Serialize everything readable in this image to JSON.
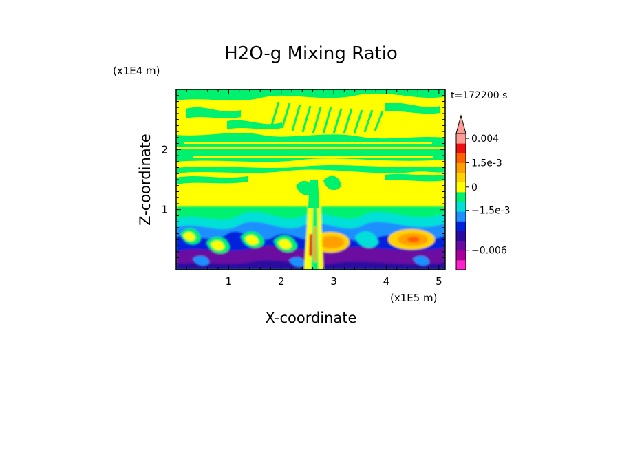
{
  "chart_data": {
    "type": "heatmap",
    "title": "H2O-g Mixing Ratio",
    "xlabel": "X-coordinate",
    "ylabel": "Z-coordinate",
    "x_multiplier": "(x1E5 m)",
    "y_multiplier": "(x1E4 m)",
    "time_label": "t=172200 s",
    "xlim": [
      0,
      5.12
    ],
    "ylim": [
      0,
      3.0
    ],
    "x_ticks": [
      {
        "value": 1,
        "label": "1"
      },
      {
        "value": 2,
        "label": "2"
      },
      {
        "value": 3,
        "label": "3"
      },
      {
        "value": 4,
        "label": "4"
      },
      {
        "value": 5,
        "label": "5"
      }
    ],
    "y_ticks": [
      {
        "value": 1,
        "label": "1"
      },
      {
        "value": 2,
        "label": "2"
      }
    ],
    "colorbar": {
      "colors": [
        "#ff22cc",
        "#aa0099",
        "#6a0aa0",
        "#2c0aa0",
        "#0020dd",
        "#1e90ff",
        "#00e0d8",
        "#00f070",
        "#ffff00",
        "#ffd200",
        "#ffa000",
        "#ff6000",
        "#ee1010",
        "#ff9d94"
      ],
      "tick_labels": [
        {
          "label": "0.004",
          "band": 13
        },
        {
          "label": "1.5e-3",
          "band": 10.5
        },
        {
          "label": "0",
          "band": 8
        },
        {
          "label": "−1.5e-3",
          "band": 5.6
        },
        {
          "label": "−0.006",
          "band": 1.5
        }
      ]
    },
    "layers": [
      {
        "z_range": [
          2.65,
          3.0
        ],
        "dominant": "0 to 1.5e-3 (yellow) with streaks near 0 (green)"
      },
      {
        "z_range": [
          2.0,
          2.65
        ],
        "dominant": "near 0 (green) with yellow bands"
      },
      {
        "z_range": [
          1.0,
          2.0
        ],
        "dominant": "0 to 1.5e-3 (yellow)"
      },
      {
        "z_range": [
          0.3,
          1.0
        ],
        "dominant": "wave structures of cyan/blue negatives, orange/red positives"
      },
      {
        "z_range": [
          0.0,
          0.3
        ],
        "dominant": "strong negative (purple/violet)"
      }
    ]
  }
}
